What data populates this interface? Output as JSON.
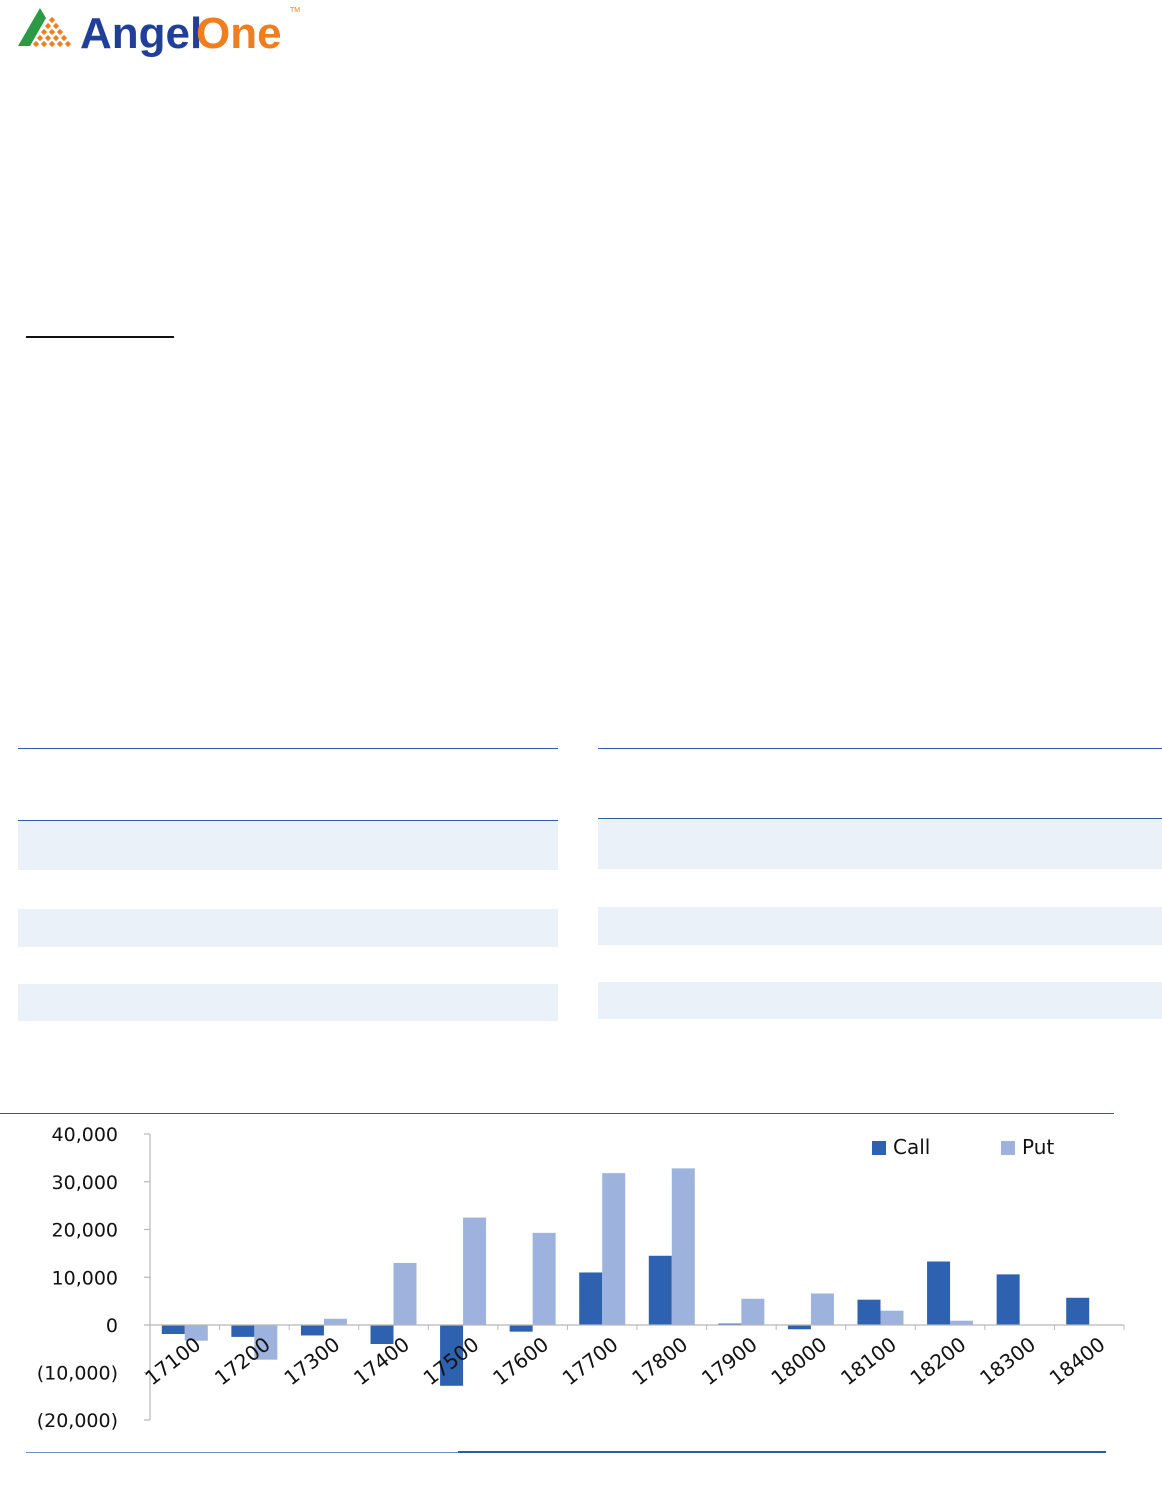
{
  "brand": {
    "name_part1": "Angel",
    "name_part2": "One",
    "trademark": "TM",
    "color_dark": "#1f3f99",
    "color_orange": "#f07d1e",
    "color_green": "#2c9a45"
  },
  "colors": {
    "call": "#2e62b0",
    "put": "#9db2dc",
    "rule": "#2a5fa8",
    "band": "#eaf1f8",
    "axis": "#b8b8b8"
  },
  "chart_data": {
    "type": "bar",
    "categories": [
      "17100",
      "17200",
      "17300",
      "17400",
      "17500",
      "17600",
      "17700",
      "17800",
      "17900",
      "18000",
      "18100",
      "18200",
      "18300",
      "18400"
    ],
    "series": [
      {
        "name": "Call",
        "values": [
          -1900,
          -2500,
          -2200,
          -4000,
          -12800,
          -1400,
          11000,
          14500,
          300,
          -900,
          5300,
          13300,
          10600,
          5700
        ]
      },
      {
        "name": "Put",
        "values": [
          -3300,
          -7300,
          1300,
          13000,
          22500,
          19300,
          31800,
          32800,
          5500,
          6600,
          3000,
          900,
          100,
          0
        ]
      }
    ],
    "ylim": [
      -20000,
      40000
    ],
    "y_ticks": [
      "40,000",
      "30,000",
      "20,000",
      "10,000",
      "0",
      "(10,000)",
      "(20,000)"
    ],
    "y_tick_values": [
      40000,
      30000,
      20000,
      10000,
      0,
      -10000,
      -20000
    ],
    "legend_position": "top-right",
    "grid": false
  }
}
